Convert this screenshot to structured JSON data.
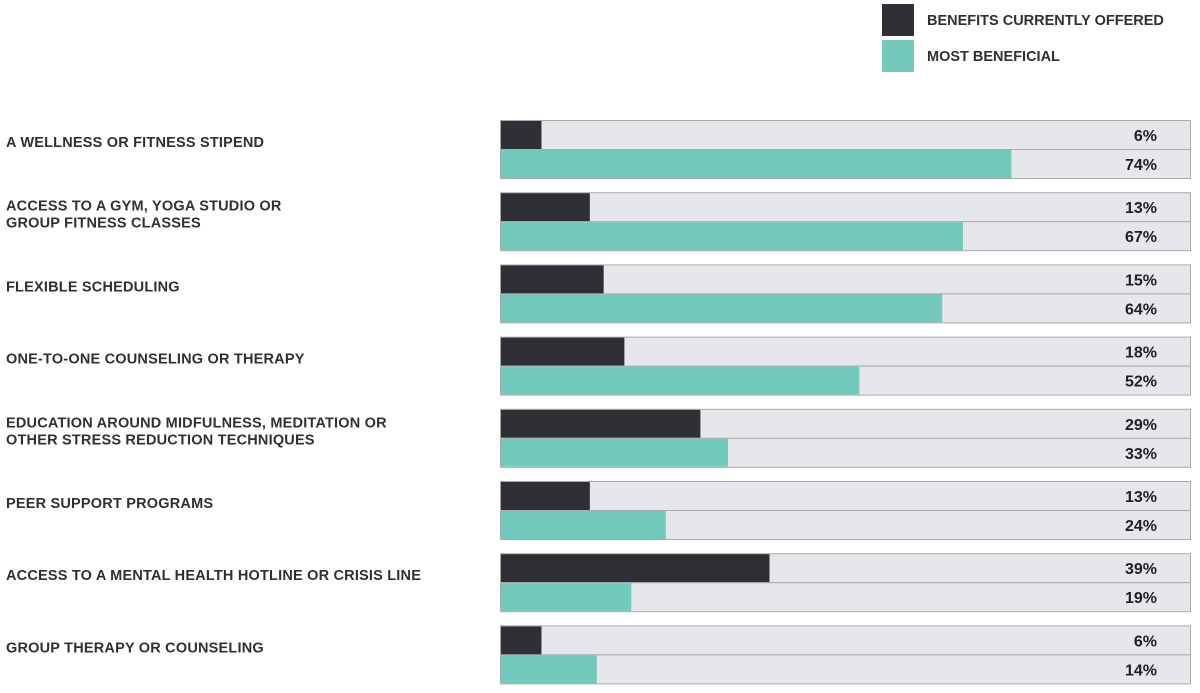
{
  "chart_data": {
    "type": "bar",
    "orientation": "horizontal",
    "title": "",
    "xlabel": "",
    "ylabel": "",
    "xlim": [
      0,
      100
    ],
    "value_suffix": "%",
    "legend_position": "top-right",
    "categories": [
      [
        "A WELLNESS OR FITNESS STIPEND"
      ],
      [
        "ACCESS TO A GYM, YOGA STUDIO OR",
        "GROUP FITNESS CLASSES"
      ],
      [
        "FLEXIBLE SCHEDULING"
      ],
      [
        "ONE-TO-ONE COUNSELING OR THERAPY"
      ],
      [
        "EDUCATION AROUND MIDFULNESS, MEDITATION OR",
        "OTHER STRESS REDUCTION TECHNIQUES"
      ],
      [
        "PEER SUPPORT PROGRAMS"
      ],
      [
        "ACCESS TO A MENTAL HEALTH HOTLINE OR CRISIS LINE"
      ],
      [
        "GROUP THERAPY OR COUNSELING"
      ]
    ],
    "series": [
      {
        "name": "BENEFITS CURRENTLY OFFERED",
        "color": "#2f3035",
        "values": [
          6,
          13,
          15,
          18,
          29,
          13,
          39,
          6
        ]
      },
      {
        "name": "MOST BENEFICIAL",
        "color": "#72c9bc",
        "values": [
          74,
          67,
          64,
          52,
          33,
          24,
          19,
          14
        ]
      }
    ],
    "track_color": "#e6e7ea",
    "track_border_color": "#a9abaf"
  }
}
